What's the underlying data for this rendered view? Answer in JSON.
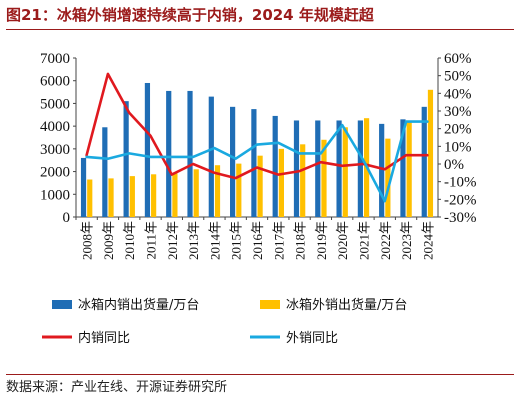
{
  "figure": {
    "title": "图21：冰箱外销增速持续高于内销，2024 年规模赶超",
    "source": "数据来源：产业在线、开源证券研究所"
  },
  "colors": {
    "title": "#9b1b1b",
    "domestic_volume": "#1f6db5",
    "export_volume": "#ffc000",
    "domestic_yoy": "#e0191f",
    "export_yoy": "#1aa9e0"
  },
  "chart_data": {
    "type": "bar",
    "categories": [
      "2008年",
      "2009年",
      "2010年",
      "2011年",
      "2012年",
      "2013年",
      "2014年",
      "2015年",
      "2016年",
      "2017年",
      "2018年",
      "2019年",
      "2020年",
      "2021年",
      "2022年",
      "2023年",
      "2024年"
    ],
    "left_axis": {
      "ylim": [
        0,
        7000
      ],
      "ticks": [
        "0",
        "1000",
        "2000",
        "3000",
        "4000",
        "5000",
        "6000",
        "7000"
      ]
    },
    "right_axis": {
      "ylim": [
        -30,
        60
      ],
      "ticks": [
        "-30%",
        "-20%",
        "-10%",
        "0%",
        "10%",
        "20%",
        "30%",
        "40%",
        "50%",
        "60%"
      ]
    },
    "series": [
      {
        "name": "冰箱内销出货量/万台",
        "kind": "bar",
        "axis": "left",
        "values": [
          2600,
          3950,
          5100,
          5900,
          5550,
          5550,
          5300,
          4850,
          4750,
          4450,
          4250,
          4250,
          4250,
          4250,
          4100,
          4300,
          4850
        ]
      },
      {
        "name": "冰箱外销出货量/万台",
        "kind": "bar",
        "axis": "left",
        "values": [
          1650,
          1700,
          1800,
          1880,
          1920,
          2100,
          2280,
          2350,
          2700,
          3000,
          3200,
          3400,
          3950,
          4350,
          3450,
          4250,
          5600
        ]
      },
      {
        "name": "内销同比",
        "kind": "line",
        "axis": "right",
        "values": [
          5,
          51,
          29,
          16,
          -6,
          0,
          -5,
          -8,
          -2,
          -6,
          -4,
          1,
          -1,
          0,
          -3,
          5,
          5
        ]
      },
      {
        "name": "外销同比",
        "kind": "line",
        "axis": "right",
        "values": [
          4,
          3,
          6,
          4,
          4,
          4,
          9,
          3,
          11,
          12,
          6,
          6,
          22,
          2,
          -21,
          24,
          24
        ]
      }
    ]
  }
}
